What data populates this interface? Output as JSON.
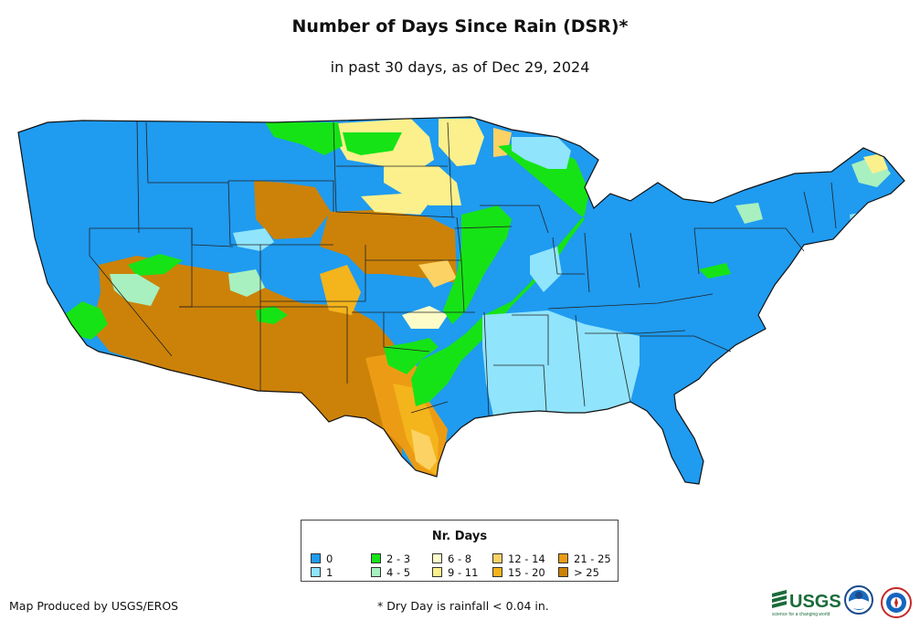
{
  "title": "Number of Days Since Rain (DSR)*",
  "subtitle": "in past 30 days, as of Dec 29, 2024",
  "legend": {
    "title": "Nr. Days",
    "items": [
      {
        "label": "0",
        "color": "#1f9bf0"
      },
      {
        "label": "1",
        "color": "#90e4fc"
      },
      {
        "label": "2 - 3",
        "color": "#16e316"
      },
      {
        "label": "4 - 5",
        "color": "#a8f0c0"
      },
      {
        "label": "6 - 8",
        "color": "#fcfcc8"
      },
      {
        "label": "9 - 11",
        "color": "#fcf08c"
      },
      {
        "label": "12 - 14",
        "color": "#fcd264"
      },
      {
        "label": "15 - 20",
        "color": "#f4b41c"
      },
      {
        "label": "21 - 25",
        "color": "#ec9c14"
      },
      {
        "label": "> 25",
        "color": "#cc8208"
      }
    ]
  },
  "credit": "Map Produced by USGS/EROS",
  "footnote": "* Dry Day is rainfall < 0.04 in.",
  "logos": {
    "usgs_text": "USGS",
    "usgs_tagline": "science for a changing world"
  }
}
